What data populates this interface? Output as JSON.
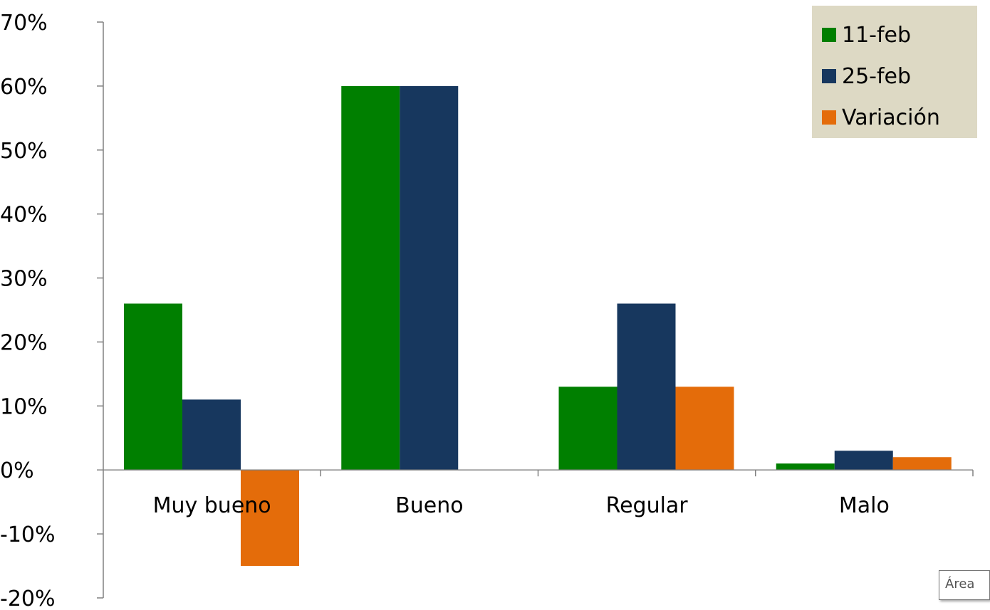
{
  "chart_data": {
    "type": "bar",
    "categories": [
      "Muy bueno",
      "Bueno",
      "Regular",
      "Malo"
    ],
    "series": [
      {
        "name": "11-feb",
        "values": [
          26,
          60,
          13,
          1
        ],
        "color": "#007f00"
      },
      {
        "name": "25-feb",
        "values": [
          11,
          60,
          26,
          3
        ],
        "color": "#17375e"
      },
      {
        "name": "Variación",
        "values": [
          -15,
          0,
          13,
          2
        ],
        "color": "#e46c0a"
      }
    ],
    "title": "",
    "xlabel": "",
    "ylabel": "",
    "ylim": [
      -20,
      70
    ],
    "yticks": [
      70,
      60,
      50,
      40,
      30,
      20,
      10,
      0,
      -10,
      -20
    ],
    "ytick_labels": [
      "70%",
      "60%",
      "50%",
      "40%",
      "30%",
      "20%",
      "10%",
      "0%",
      "-10%",
      "-20%"
    ],
    "grid": false,
    "legend_position": "top-right",
    "legend_background": "#ddd9c4"
  },
  "tooltip": {
    "text": "Área"
  }
}
